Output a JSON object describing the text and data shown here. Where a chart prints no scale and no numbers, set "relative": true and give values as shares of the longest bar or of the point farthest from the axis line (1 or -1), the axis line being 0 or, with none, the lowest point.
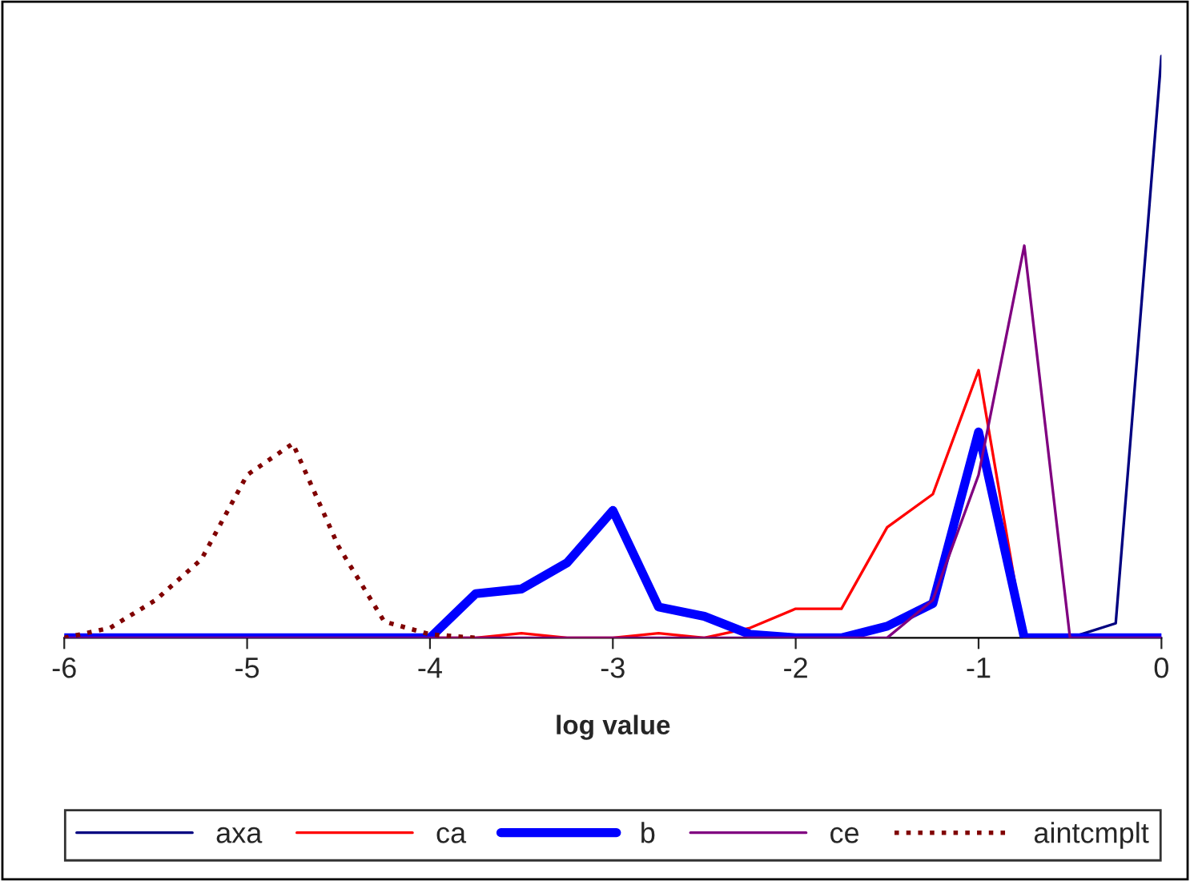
{
  "chart_data": {
    "type": "line",
    "relative": true,
    "xlabel": "log value",
    "x": [
      -6,
      -5.75,
      -5.5,
      -5.25,
      -5,
      -4.75,
      -4.5,
      -4.25,
      -4,
      -3.75,
      -3.5,
      -3.25,
      -3,
      -2.75,
      -2.5,
      -2.25,
      -2,
      -1.75,
      -1.5,
      -1.25,
      -1,
      -0.75,
      -0.5,
      -0.25,
      0
    ],
    "xlim": [
      -6,
      0
    ],
    "xticks": [
      -6,
      -5,
      -4,
      -3,
      -2,
      -1,
      0
    ],
    "grid": false,
    "legend": "bottom",
    "marker": "none",
    "series": [
      {
        "name": "axa",
        "color": "#000080",
        "line_style": "solid",
        "values": [
          null,
          null,
          null,
          null,
          null,
          null,
          null,
          null,
          null,
          null,
          null,
          null,
          null,
          null,
          null,
          null,
          null,
          null,
          null,
          null,
          null,
          0,
          0,
          0.025,
          1
        ]
      },
      {
        "name": "ca",
        "color": "#ff0000",
        "line_style": "solid",
        "values": [
          null,
          null,
          null,
          null,
          null,
          null,
          null,
          null,
          0,
          0,
          0.008,
          0,
          0,
          0.008,
          0,
          0.017,
          0.05,
          0.05,
          0.19,
          0.247,
          0.46,
          0,
          0,
          null,
          null
        ]
      },
      {
        "name": "b",
        "color": "#0000ff",
        "line_style": "solid",
        "values": [
          0,
          0,
          0,
          0,
          0,
          0,
          0,
          0,
          0,
          0.076,
          0.084,
          0.129,
          0.219,
          0.053,
          0.037,
          0.006,
          0,
          0,
          0.02,
          0.059,
          0.354,
          0,
          0,
          0,
          0
        ]
      },
      {
        "name": "ce",
        "color": "#800080",
        "line_style": "solid",
        "values": [
          0,
          0,
          0,
          0,
          0,
          0,
          0,
          0,
          0,
          0,
          0,
          0,
          0,
          0,
          0,
          0,
          0,
          0,
          0,
          0.065,
          0.28,
          0.674,
          0,
          0,
          0
        ]
      },
      {
        "name": "aintcmplt",
        "color": "#800000",
        "line_style": "dotted",
        "values": [
          0,
          0.017,
          0.065,
          0.135,
          0.28,
          0.334,
          0.157,
          0.028,
          0.006,
          0,
          null,
          null,
          null,
          null,
          null,
          null,
          null,
          null,
          null,
          null,
          null,
          null,
          null,
          null,
          null
        ]
      }
    ]
  }
}
